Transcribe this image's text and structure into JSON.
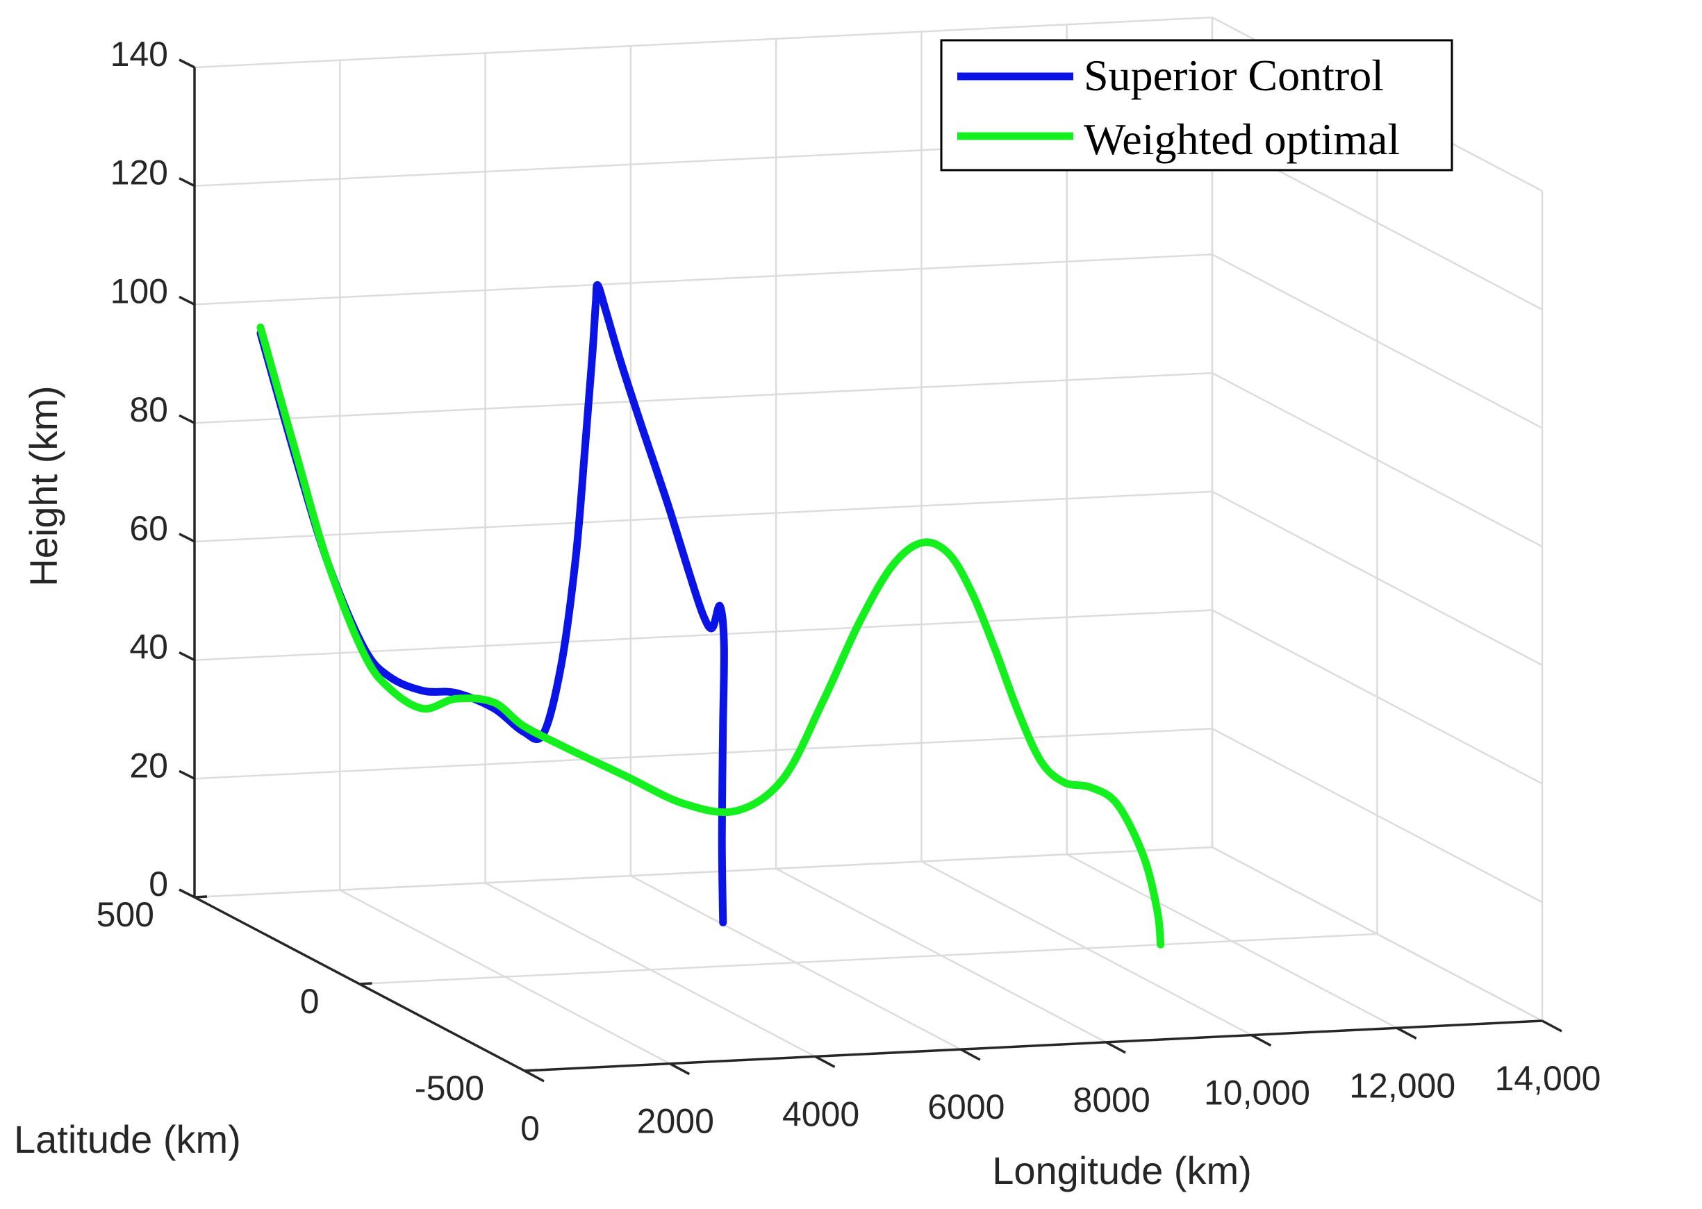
{
  "chart_data": {
    "type": "line3d",
    "xlabel": "Longitude (km)",
    "ylabel": "Latitude (km)",
    "zlabel": "Height (km)",
    "xlim": [
      0,
      14000
    ],
    "ylim": [
      -500,
      500
    ],
    "zlim": [
      0,
      140
    ],
    "xticks": [
      "0",
      "2000",
      "4000",
      "6000",
      "8000",
      "10,000",
      "12,000",
      "14,000"
    ],
    "yticks": [
      "-500",
      "0",
      "500"
    ],
    "zticks": [
      "0",
      "20",
      "40",
      "60",
      "80",
      "100",
      "120",
      "140"
    ],
    "grid": true,
    "legend_position": "top-right",
    "series": [
      {
        "name": "Superior Control",
        "color": "#0a14e6",
        "points": [
          [
            0,
            300,
            101
          ],
          [
            240,
            250,
            82
          ],
          [
            470,
            200,
            65
          ],
          [
            720,
            145,
            52
          ],
          [
            920,
            110,
            48
          ],
          [
            1150,
            60,
            47
          ],
          [
            1370,
            10,
            48
          ],
          [
            1620,
            -50,
            47
          ],
          [
            1860,
            -85,
            44
          ],
          [
            2050,
            -105,
            44
          ],
          [
            2230,
            -120,
            56
          ],
          [
            2430,
            -120,
            74
          ],
          [
            2650,
            -100,
            92
          ],
          [
            2930,
            -60,
            106
          ],
          [
            3250,
            0,
            113
          ],
          [
            3550,
            60,
            114
          ],
          [
            3850,
            100,
            108
          ],
          [
            4100,
            110,
            99
          ],
          [
            4350,
            100,
            88
          ],
          [
            4600,
            80,
            76
          ],
          [
            4800,
            60,
            65
          ],
          [
            4930,
            45,
            58
          ],
          [
            5010,
            35,
            56
          ],
          [
            5070,
            25,
            60
          ],
          [
            5060,
            10,
            54
          ],
          [
            5000,
            0,
            40
          ],
          [
            4940,
            -10,
            22
          ],
          [
            4910,
            -20,
            8
          ]
        ]
      },
      {
        "name": "Weighted optimal",
        "color": "#14f01e",
        "points": [
          [
            0,
            300,
            102
          ],
          [
            240,
            250,
            83
          ],
          [
            470,
            200,
            65
          ],
          [
            720,
            145,
            51
          ],
          [
            920,
            110,
            46
          ],
          [
            1150,
            60,
            44
          ],
          [
            1370,
            10,
            47
          ],
          [
            1620,
            -50,
            48
          ],
          [
            1860,
            -85,
            45
          ],
          [
            2150,
            -140,
            43
          ],
          [
            2650,
            -220,
            40
          ],
          [
            3150,
            -290,
            37
          ],
          [
            3650,
            -340,
            37
          ],
          [
            4150,
            -370,
            43
          ],
          [
            4650,
            -380,
            56
          ],
          [
            5150,
            -380,
            69
          ],
          [
            5650,
            -370,
            78
          ],
          [
            6150,
            -350,
            81
          ],
          [
            6650,
            -320,
            78
          ],
          [
            7150,
            -280,
            70
          ],
          [
            7650,
            -240,
            59
          ],
          [
            8150,
            -200,
            47
          ],
          [
            8650,
            -160,
            37
          ],
          [
            9150,
            -120,
            32
          ],
          [
            9650,
            -90,
            30
          ],
          [
            10150,
            -60,
            26
          ],
          [
            10650,
            -30,
            16
          ],
          [
            10930,
            -10,
            6
          ],
          [
            11020,
            0,
            0
          ]
        ]
      }
    ]
  }
}
